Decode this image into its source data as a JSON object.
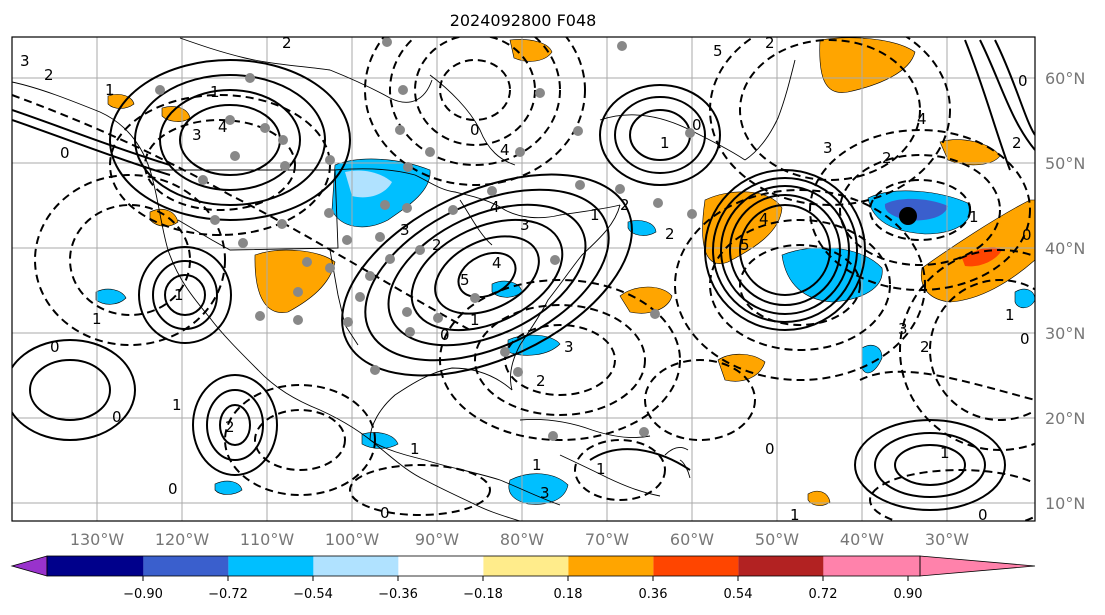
{
  "title": "2024092800 F048",
  "map": {
    "lon_labels": [
      "130°W",
      "120°W",
      "110°W",
      "100°W",
      "90°W",
      "80°W",
      "70°W",
      "60°W",
      "50°W",
      "40°W",
      "30°W"
    ],
    "lat_labels": [
      "60°N",
      "50°N",
      "40°N",
      "30°N",
      "20°N",
      "10°N"
    ],
    "grid": true,
    "colors": {
      "grid": "#aaaaaa",
      "coast": "#000000",
      "station": "#888888",
      "marker": "#000000"
    }
  },
  "colorbar": {
    "levels": [
      "−0.90",
      "−0.72",
      "−0.54",
      "−0.36",
      "−0.18",
      "0.18",
      "0.36",
      "0.54",
      "0.72",
      "0.90"
    ],
    "colors": [
      "#9932cc",
      "#00008b",
      "#3a5fcd",
      "#00bfff",
      "#b0e2ff",
      "#ffffff",
      "#ffec8b",
      "#ffa500",
      "#ff4500",
      "#b22222",
      "#ff82ab"
    ]
  },
  "contour_labels": [
    "3",
    "2",
    "1",
    "0",
    "1",
    "3",
    "4",
    "2",
    "0",
    "4",
    "5",
    "2",
    "3",
    "3",
    "4",
    "1",
    "2",
    "2",
    "4",
    "5",
    "3",
    "4",
    "5",
    "2",
    "1",
    "0",
    "1",
    "2",
    "3",
    "4",
    "1",
    "0",
    "3",
    "2",
    "0",
    "1",
    "0",
    "2",
    "1",
    "1",
    "0",
    "0",
    "1",
    "0",
    "0",
    "2",
    "1",
    "3",
    "1",
    "0",
    "1",
    "2",
    "1",
    "0",
    "1",
    "0"
  ]
}
